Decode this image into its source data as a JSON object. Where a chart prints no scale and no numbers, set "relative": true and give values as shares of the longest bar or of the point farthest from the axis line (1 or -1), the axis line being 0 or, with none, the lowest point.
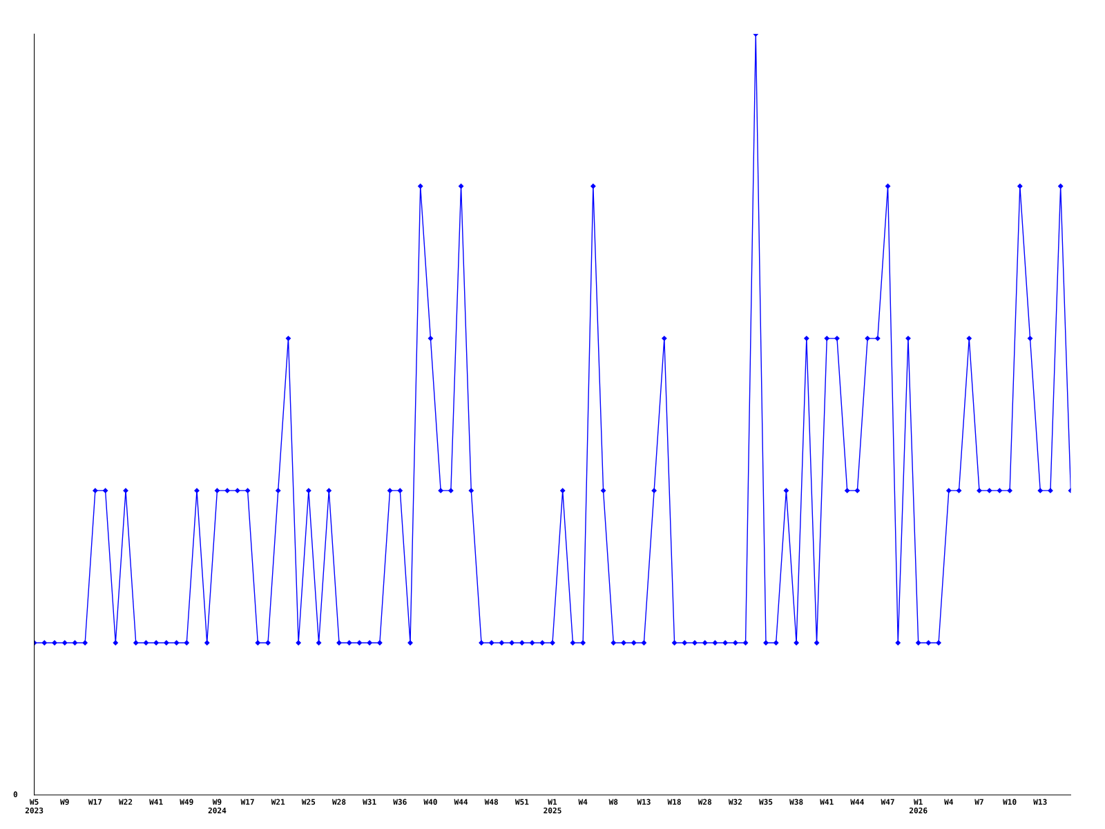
{
  "chart_data": {
    "type": "line",
    "relative": true,
    "marker": "diamond",
    "line_style": "solid",
    "categories": [
      "W5\n2023",
      null,
      null,
      "W9",
      null,
      null,
      "W17",
      null,
      null,
      "W22",
      null,
      null,
      "W41",
      null,
      null,
      "W49",
      null,
      null,
      "W9\n2024",
      null,
      null,
      "W17",
      null,
      null,
      "W21",
      null,
      null,
      "W25",
      null,
      null,
      "W28",
      null,
      null,
      "W31",
      null,
      null,
      "W36",
      null,
      null,
      "W40",
      null,
      null,
      "W44",
      null,
      null,
      "W48",
      null,
      null,
      "W51",
      null,
      null,
      "W1\n2025",
      null,
      null,
      "W4",
      null,
      null,
      "W8",
      null,
      null,
      "W13",
      null,
      null,
      "W18",
      null,
      null,
      "W28",
      null,
      null,
      "W32",
      null,
      null,
      "W35",
      null,
      null,
      "W38",
      null,
      null,
      "W41",
      null,
      null,
      "W44",
      null,
      null,
      "W47",
      null,
      null,
      "W1\n2026",
      null,
      null,
      "W4",
      null,
      null,
      "W7",
      null,
      null,
      "W10",
      null,
      null,
      "W13",
      null,
      null,
      null
    ],
    "series": [
      {
        "color": "#0000ff",
        "values": [
          0.2,
          0.2,
          0.2,
          0.2,
          0.2,
          0.2,
          0.4,
          0.4,
          0.2,
          0.4,
          0.2,
          0.2,
          0.2,
          0.2,
          0.2,
          0.2,
          0.4,
          0.2,
          0.4,
          0.4,
          0.4,
          0.4,
          0.2,
          0.2,
          0.4,
          0.6,
          0.2,
          0.4,
          0.2,
          0.4,
          0.2,
          0.2,
          0.2,
          0.2,
          0.2,
          0.4,
          0.4,
          0.2,
          0.8,
          0.6,
          0.4,
          0.4,
          0.8,
          0.4,
          0.2,
          0.2,
          0.2,
          0.2,
          0.2,
          0.2,
          0.2,
          0.2,
          0.4,
          0.2,
          0.2,
          0.8,
          0.4,
          0.2,
          0.2,
          0.2,
          0.2,
          0.4,
          0.6,
          0.2,
          0.2,
          0.2,
          0.2,
          0.2,
          0.2,
          0.2,
          0.2,
          1,
          0.2,
          0.2,
          0.4,
          0.2,
          0.6,
          0.2,
          0.6,
          0.6,
          0.4,
          0.4,
          0.6,
          0.6,
          0.8,
          0.2,
          0.6,
          0.2,
          0.2,
          0.2,
          0.4,
          0.4,
          0.6,
          0.4,
          0.4,
          0.4,
          0.4,
          0.8,
          0.6,
          0.4,
          0.4,
          0.8,
          0.4
        ]
      }
    ],
    "annotations": [
      "0"
    ]
  }
}
